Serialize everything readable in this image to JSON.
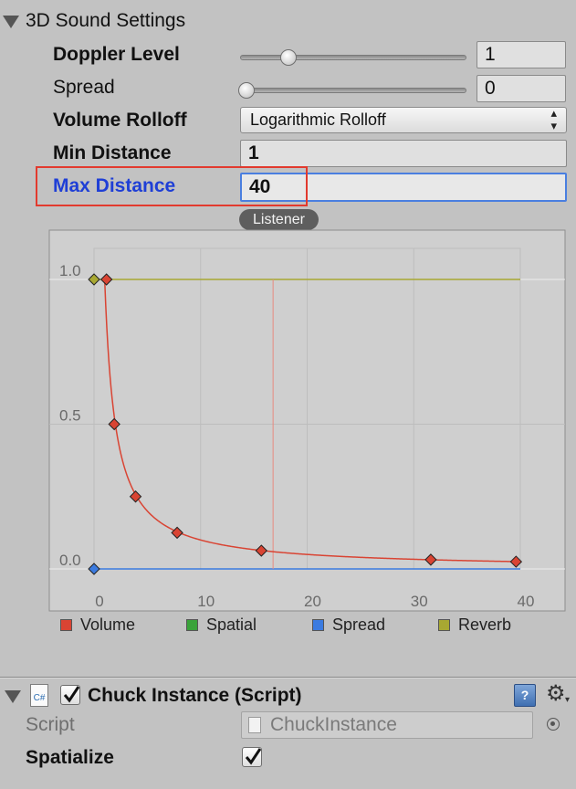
{
  "section": {
    "title": "3D Sound Settings"
  },
  "doppler": {
    "label": "Doppler Level",
    "value": "1",
    "slider_fraction": 0.2
  },
  "spread": {
    "label": "Spread",
    "value": "0",
    "slider_fraction": 0.0
  },
  "volume_rolloff": {
    "label": "Volume Rolloff",
    "value": "Logarithmic Rolloff"
  },
  "min_distance": {
    "label": "Min Distance",
    "value": "1"
  },
  "max_distance": {
    "label": "Max Distance",
    "value": "40"
  },
  "listener": {
    "label": "Listener",
    "position": 16.8
  },
  "chart_data": {
    "type": "line",
    "x_ticks": [
      "0",
      "10",
      "20",
      "30",
      "40"
    ],
    "y_ticks": [
      "1.0",
      "0.5",
      "0.0"
    ],
    "xlim": [
      0,
      40
    ],
    "ylim": [
      0,
      1
    ],
    "grid": true,
    "legend_placement": "bottom",
    "series": [
      {
        "name": "Volume",
        "color": "#d94433",
        "x": [
          1,
          1.9,
          3.9,
          7.8,
          15.7,
          31.6,
          39.6
        ],
        "values": [
          1.0,
          0.5,
          0.25,
          0.125,
          0.063,
          0.032,
          0.025
        ]
      },
      {
        "name": "Spatial",
        "color": "#3aa33a",
        "x": [],
        "values": []
      },
      {
        "name": "Spread",
        "color": "#3b7be0",
        "x": [
          0,
          40
        ],
        "values": [
          0,
          0
        ]
      },
      {
        "name": "Reverb",
        "color": "#a8a832",
        "x": [
          0,
          40
        ],
        "values": [
          1,
          1
        ]
      }
    ]
  },
  "component": {
    "title": "Chuck Instance (Script)",
    "enabled": true,
    "script_label": "Script",
    "script_value": "ChuckInstance",
    "spatialize_label": "Spatialize",
    "spatialize_checked": true
  }
}
